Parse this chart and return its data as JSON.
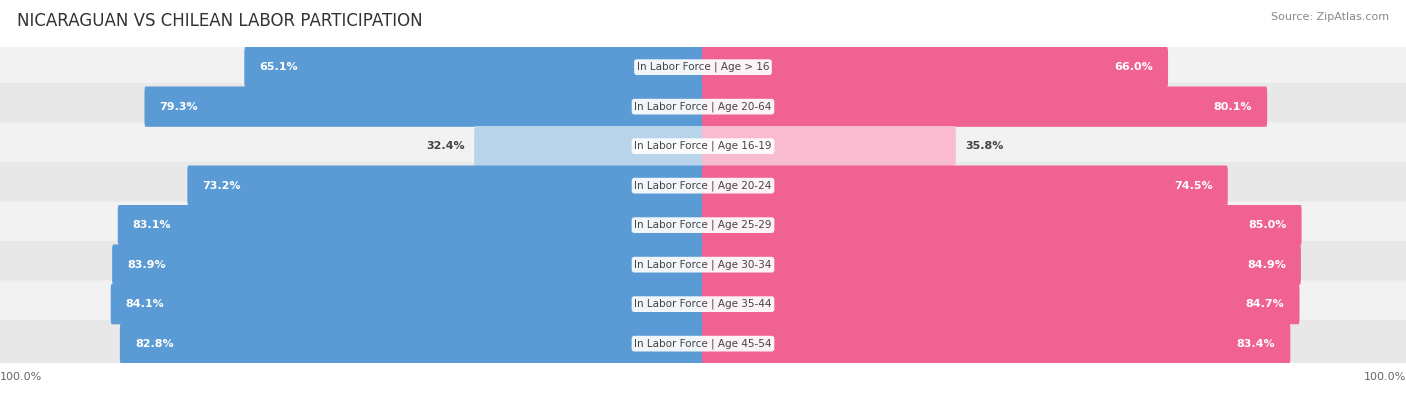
{
  "title": "NICARAGUAN VS CHILEAN LABOR PARTICIPATION",
  "source": "Source: ZipAtlas.com",
  "categories": [
    "In Labor Force | Age > 16",
    "In Labor Force | Age 20-64",
    "In Labor Force | Age 16-19",
    "In Labor Force | Age 20-24",
    "In Labor Force | Age 25-29",
    "In Labor Force | Age 30-34",
    "In Labor Force | Age 35-44",
    "In Labor Force | Age 45-54"
  ],
  "nicaraguan": [
    65.1,
    79.3,
    32.4,
    73.2,
    83.1,
    83.9,
    84.1,
    82.8
  ],
  "chilean": [
    66.0,
    80.1,
    35.8,
    74.5,
    85.0,
    84.9,
    84.7,
    83.4
  ],
  "blue_dark": "#5b9bd5",
  "blue_light": "#b8d4ea",
  "pink_dark": "#f06292",
  "pink_light": "#f8bbd0",
  "row_bg_light": "#f2f2f2",
  "row_bg_dark": "#e8e8e8",
  "title_fontsize": 12,
  "source_fontsize": 8,
  "bar_label_fontsize": 8,
  "cat_label_fontsize": 7.5,
  "legend_fontsize": 8.5,
  "axis_label_fontsize": 8
}
